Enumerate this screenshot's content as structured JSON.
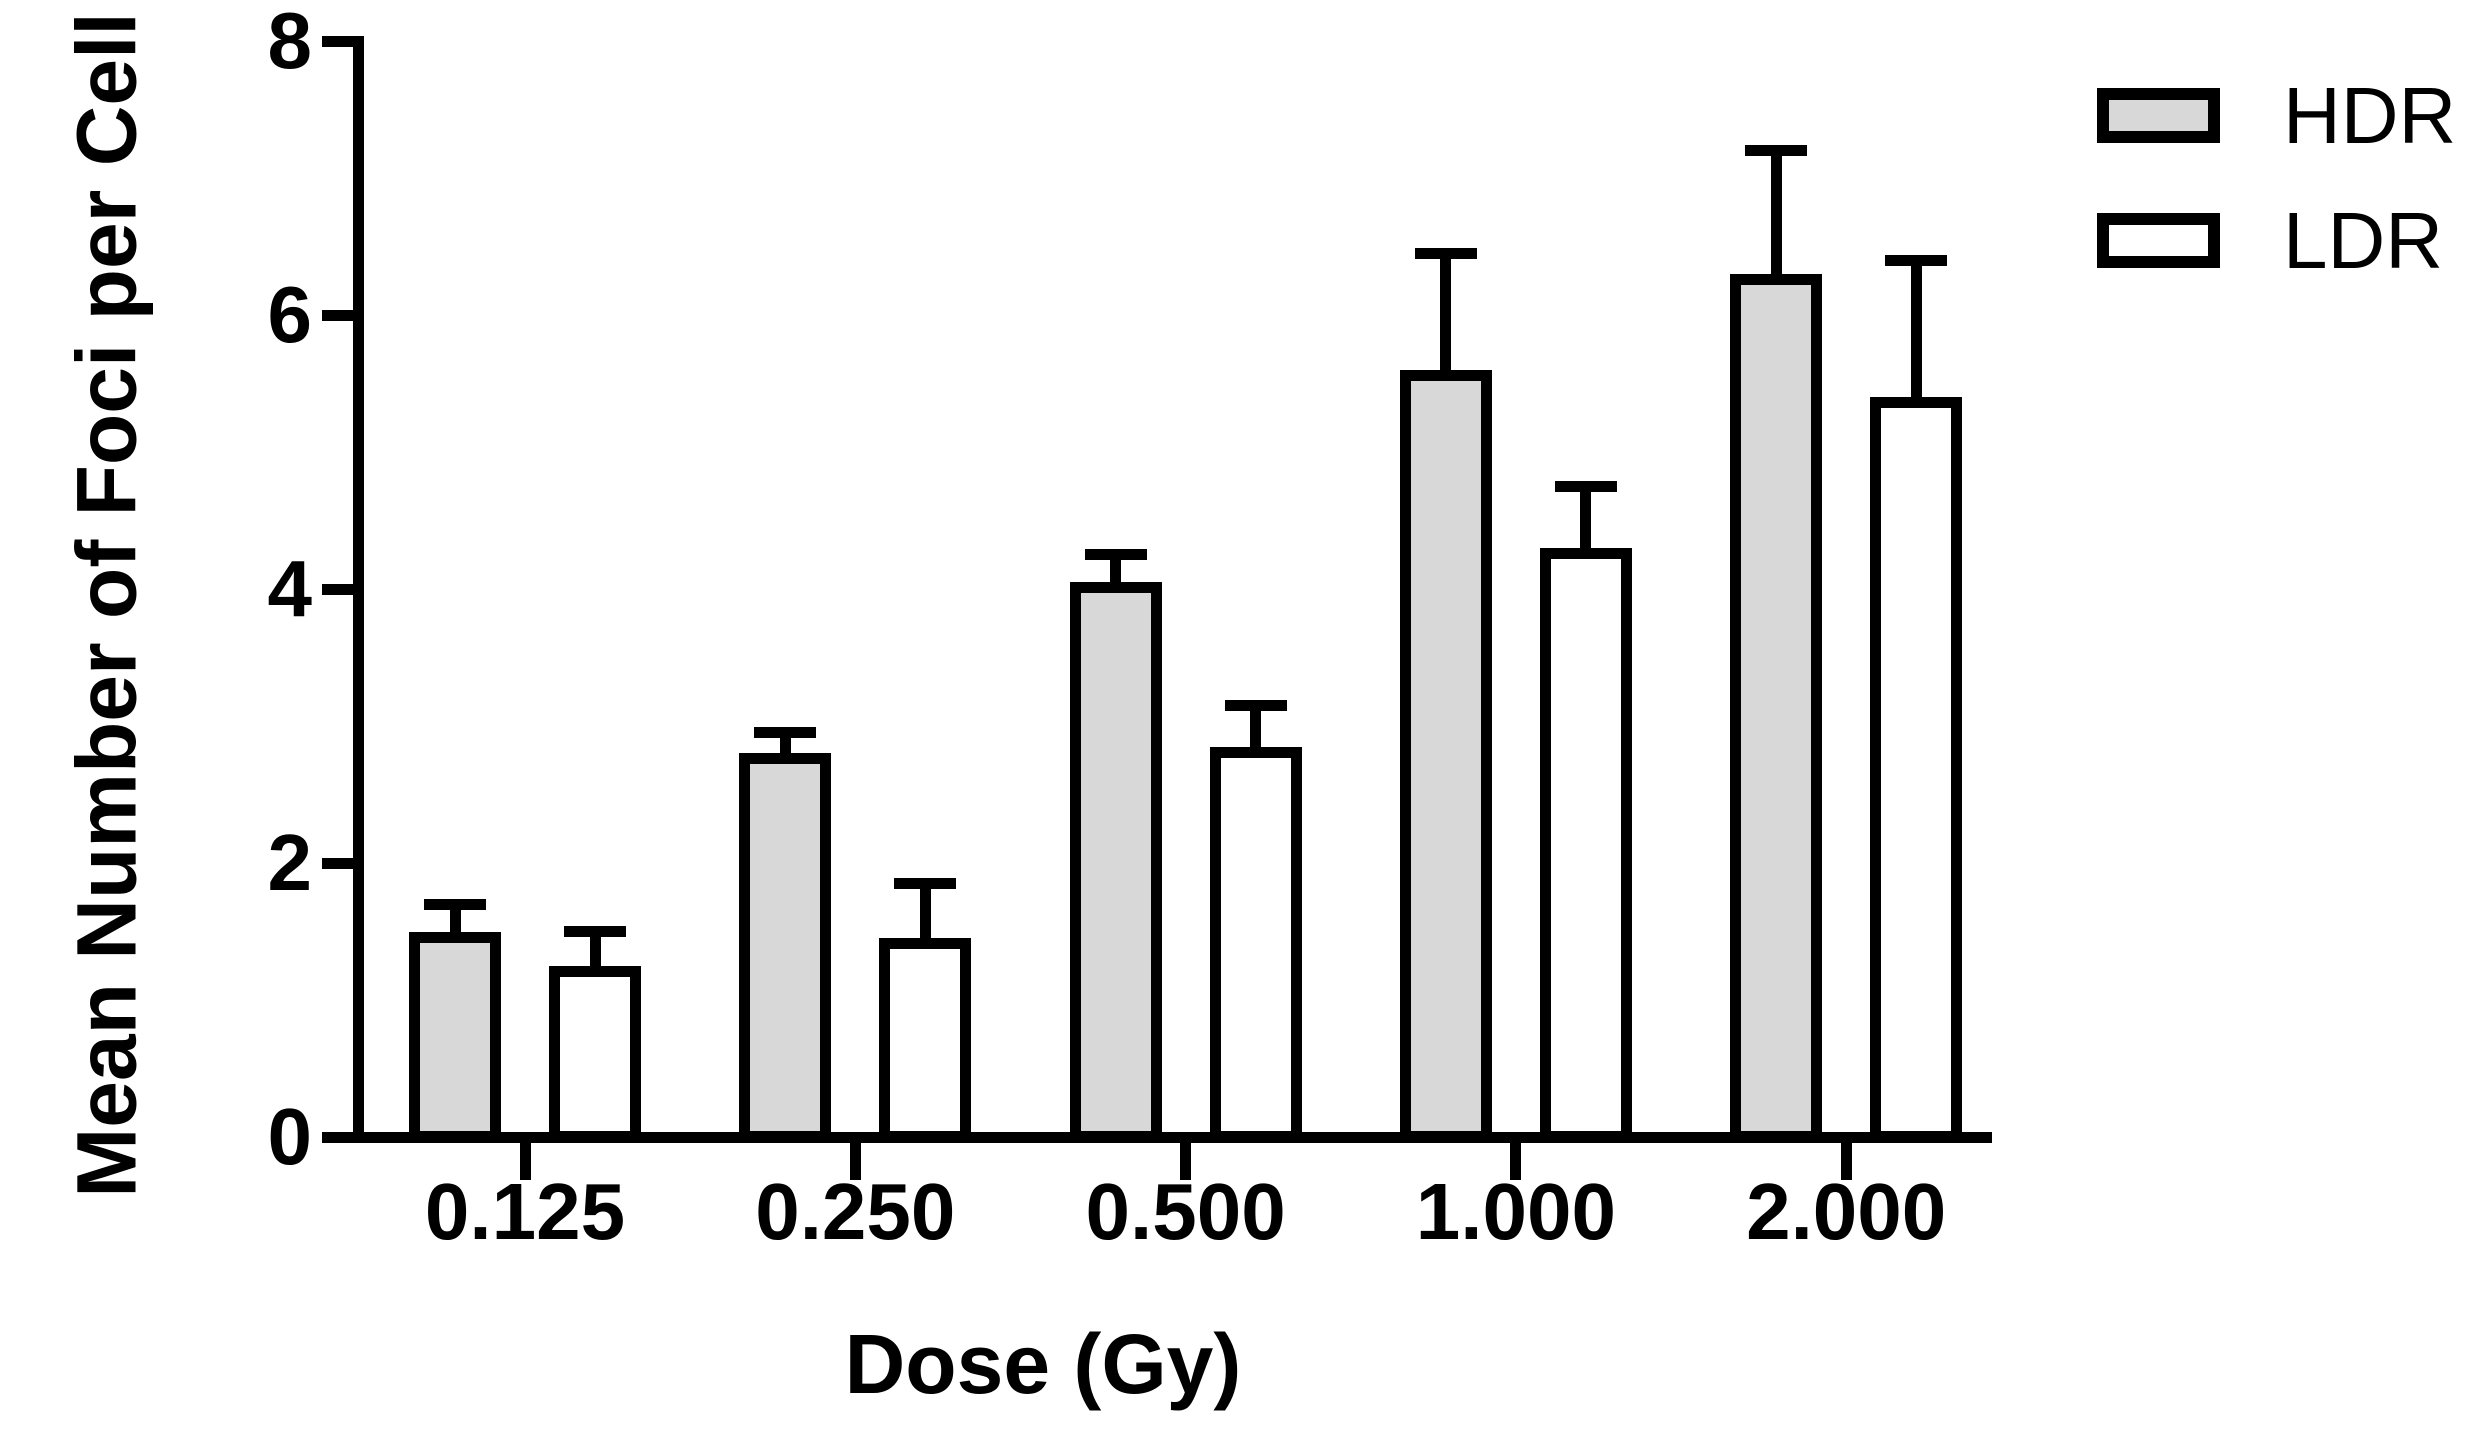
{
  "figure": {
    "background": "#ffffff",
    "line_color": "#000000",
    "bar_gray": "#d8d8d8",
    "bar_white": "#ffffff"
  },
  "chart_data": {
    "type": "bar",
    "title": "",
    "xlabel": "Dose (Gy)",
    "ylabel": "Mean Number of Foci per Cell",
    "categories": [
      "0.125",
      "0.250",
      "0.500",
      "1.000",
      "2.000"
    ],
    "series": [
      {
        "name": "HDR",
        "fill": "#d8d8d8",
        "values": [
          1.5,
          2.8,
          4.05,
          5.6,
          6.3
        ],
        "errors_upper": [
          0.2,
          0.15,
          0.2,
          0.85,
          0.9
        ]
      },
      {
        "name": "LDR",
        "fill": "#ffffff",
        "values": [
          1.25,
          1.45,
          2.85,
          4.3,
          5.4
        ],
        "errors_upper": [
          0.25,
          0.4,
          0.3,
          0.45,
          1.0
        ]
      }
    ],
    "y_ticks": [
      0,
      2,
      4,
      6,
      8
    ],
    "ylim": [
      0,
      8
    ],
    "grid": false,
    "legend_position": "top-right",
    "error_bars": "upper SEM with caps"
  }
}
